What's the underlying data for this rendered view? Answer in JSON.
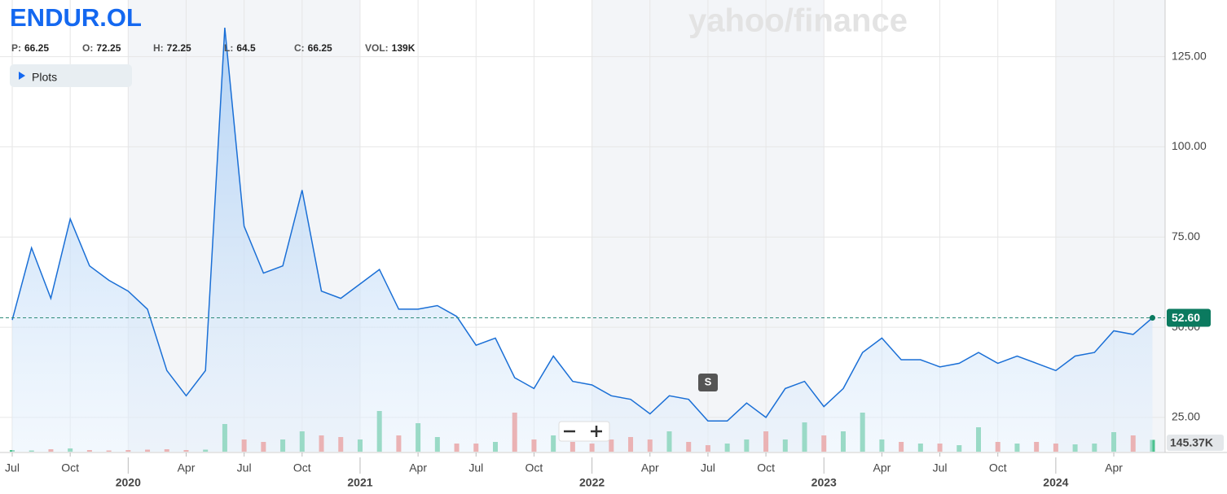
{
  "chart_data": {
    "type": "line",
    "title": "ENDUR.OL",
    "watermark": "yahoo/finance",
    "plots_button": "Plots",
    "split_marker": "S",
    "quote": [
      {
        "label": "P:",
        "value": 66.25
      },
      {
        "label": "O:",
        "value": 72.25
      },
      {
        "label": "H:",
        "value": 72.25
      },
      {
        "label": "L:",
        "value": 64.5
      },
      {
        "label": "C:",
        "value": 66.25
      },
      {
        "label": "VOL:",
        "value": "139K"
      }
    ],
    "x": [
      "2019-07",
      "2019-08",
      "2019-09",
      "2019-10",
      "2019-11",
      "2019-12",
      "2020-01",
      "2020-02",
      "2020-03",
      "2020-04",
      "2020-05",
      "2020-06",
      "2020-07",
      "2020-08",
      "2020-09",
      "2020-10",
      "2020-11",
      "2020-12",
      "2021-01",
      "2021-02",
      "2021-03",
      "2021-04",
      "2021-05",
      "2021-06",
      "2021-07",
      "2021-08",
      "2021-09",
      "2021-10",
      "2021-11",
      "2021-12",
      "2022-01",
      "2022-02",
      "2022-03",
      "2022-04",
      "2022-05",
      "2022-06",
      "2022-07",
      "2022-08",
      "2022-09",
      "2022-10",
      "2022-11",
      "2022-12",
      "2023-01",
      "2023-02",
      "2023-03",
      "2023-04",
      "2023-05",
      "2023-06",
      "2023-07",
      "2023-08",
      "2023-09",
      "2023-10",
      "2023-11",
      "2023-12",
      "2024-01",
      "2024-02",
      "2024-03",
      "2024-04",
      "2024-05",
      "2024-06"
    ],
    "values": [
      52,
      72,
      58,
      80,
      67,
      63,
      60,
      55,
      38,
      31,
      38,
      133,
      78,
      65,
      67,
      88,
      60,
      58,
      62,
      66,
      55,
      55,
      56,
      53,
      45,
      47,
      36,
      33,
      42,
      35,
      34,
      31,
      30,
      26,
      31,
      30,
      24,
      24,
      29,
      25,
      33,
      35,
      28,
      33,
      43,
      47,
      41,
      41,
      39,
      40,
      43,
      40,
      42,
      40,
      38,
      42,
      43,
      49,
      48,
      52.6
    ],
    "volume": [
      20000,
      15000,
      30000,
      40000,
      20000,
      15000,
      20000,
      25000,
      30000,
      20000,
      25000,
      340000,
      150000,
      120000,
      150000,
      250000,
      200000,
      180000,
      150000,
      500000,
      200000,
      350000,
      180000,
      100000,
      100000,
      120000,
      480000,
      150000,
      200000,
      120000,
      100000,
      150000,
      180000,
      150000,
      250000,
      120000,
      80000,
      100000,
      150000,
      250000,
      150000,
      360000,
      200000,
      250000,
      480000,
      150000,
      120000,
      100000,
      100000,
      80000,
      300000,
      120000,
      100000,
      120000,
      100000,
      90000,
      100000,
      240000,
      200000,
      145370
    ],
    "volume_ylim": [
      0,
      600000
    ],
    "color": "#1a6fd6",
    "up_color": "#4cc28e",
    "down_color": "#f0736a",
    "ylim": [
      15.5,
      140.7
    ],
    "yticks": [
      {
        "value": 25,
        "label": "25.00"
      },
      {
        "value": 50,
        "label": "50.00"
      },
      {
        "value": 75,
        "label": "75.00"
      },
      {
        "value": 100,
        "label": "100.00"
      },
      {
        "value": 125,
        "label": "125.00"
      }
    ],
    "xticks": [
      {
        "value": "2019-07",
        "label": "Jul"
      },
      {
        "value": "2019-10",
        "label": "Oct"
      },
      {
        "value": "2020-01",
        "label": "2020"
      },
      {
        "value": "2020-04",
        "label": "Apr"
      },
      {
        "value": "2020-07",
        "label": "Jul"
      },
      {
        "value": "2020-10",
        "label": "Oct"
      },
      {
        "value": "2021-01",
        "label": "2021"
      },
      {
        "value": "2021-04",
        "label": "Apr"
      },
      {
        "value": "2021-07",
        "label": "Jul"
      },
      {
        "value": "2021-10",
        "label": "Oct"
      },
      {
        "value": "2022-01",
        "label": "2022"
      },
      {
        "value": "2022-04",
        "label": "Apr"
      },
      {
        "value": "2022-07",
        "label": "Jul"
      },
      {
        "value": "2022-10",
        "label": "Oct"
      },
      {
        "value": "2023-01",
        "label": "2023"
      },
      {
        "value": "2023-04",
        "label": "Apr"
      },
      {
        "value": "2023-07",
        "label": "Jul"
      },
      {
        "value": "2023-10",
        "label": "Oct"
      },
      {
        "value": "2024-01",
        "label": "2024"
      },
      {
        "value": "2024-04",
        "label": "Apr"
      }
    ],
    "last_price": {
      "value": 52.6,
      "label": "52.60"
    },
    "last_volume": {
      "value": 145370,
      "label": "145.37K"
    },
    "grid": true
  }
}
